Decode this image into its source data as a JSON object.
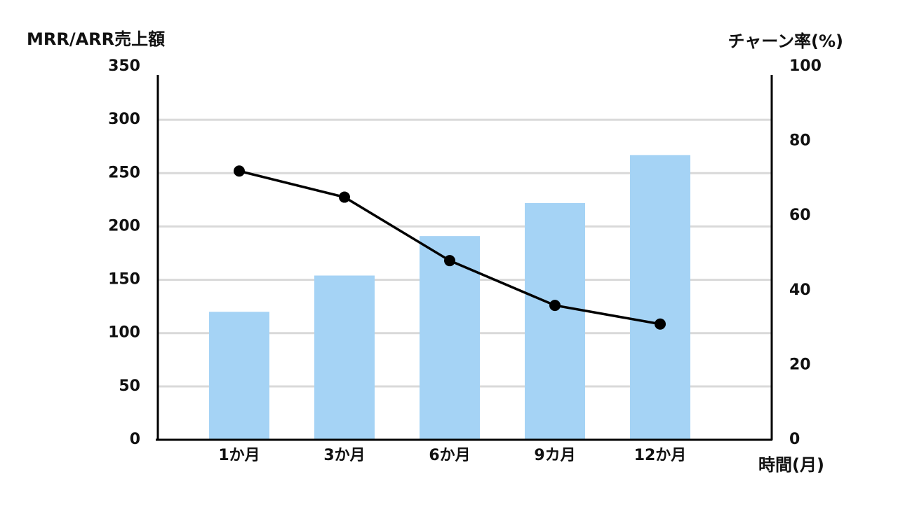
{
  "chart_data": {
    "type": "bar",
    "y_label": "MRR/ARR売上額",
    "y2_label": "チャーン率(%)",
    "x_label": "時間(月)",
    "categories": [
      "1か月",
      "3か月",
      "6か月",
      "9カ月",
      "12か月"
    ],
    "series": [
      {
        "type": "bar",
        "color": "#a5d3f5",
        "values": [
          120,
          154,
          191,
          222,
          267
        ]
      },
      {
        "type": "line",
        "axis": "y2",
        "color": "#000000",
        "values": [
          72,
          65,
          48,
          36,
          31
        ]
      }
    ],
    "ylim": [
      0,
      350
    ],
    "yticks": [
      0,
      50,
      100,
      150,
      200,
      250,
      300,
      350
    ],
    "y2lim": [
      0,
      100
    ],
    "y2ticks": [
      0,
      20,
      40,
      60,
      80,
      100
    ],
    "grid": true
  }
}
